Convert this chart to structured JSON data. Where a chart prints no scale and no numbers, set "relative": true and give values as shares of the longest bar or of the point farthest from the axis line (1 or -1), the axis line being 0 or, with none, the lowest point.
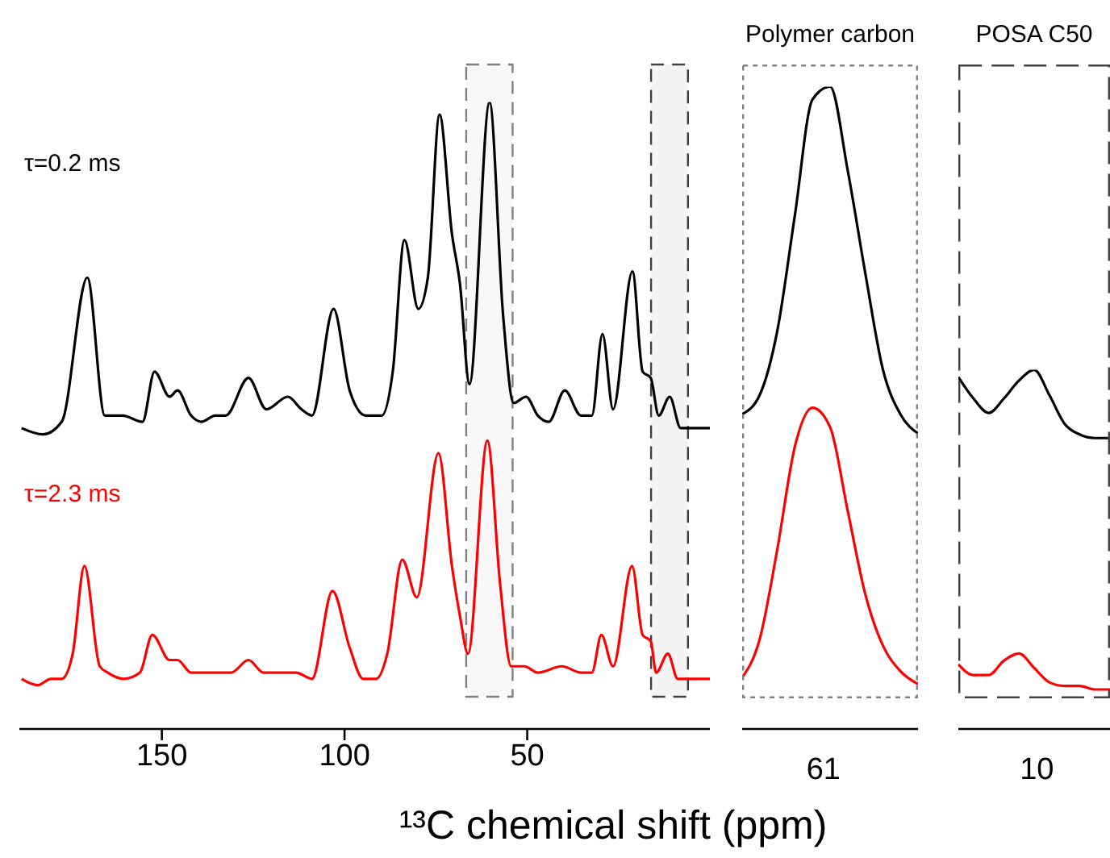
{
  "chart_data": [
    {
      "type": "line",
      "xlabel": "¹³C chemical shift (ppm)",
      "relative": true,
      "marker": "none",
      "xlim": [
        189,
        0
      ],
      "xticks": [
        150,
        100,
        50
      ],
      "bands": [
        {
          "axis": "x",
          "from": 66.7,
          "to": 54,
          "color": "#808080"
        },
        {
          "axis": "x",
          "from": 16.1,
          "to": 6,
          "color": "#404040"
        }
      ],
      "series": [
        {
          "name": "τ=0.2 ms",
          "color": "#000000",
          "x": [
            188.4,
            182.5,
            177.4,
            170.4,
            165.6,
            160.7,
            155.3,
            152.0,
            147.9,
            145.7,
            142.0,
            139.1,
            135.4,
            132.5,
            126.3,
            121.4,
            115.5,
            111.8,
            108.9,
            103.0,
            98.6,
            94.2,
            89.8,
            86.8,
            83.6,
            79.8,
            77.2,
            74.0,
            70.6,
            68.4,
            65.8,
            60.3,
            56.6,
            53.7,
            50.3,
            47.1,
            44.1,
            39.7,
            35.3,
            32.3,
            29.4,
            26.5,
            21.2,
            18.4,
            16.2,
            14.0,
            11.0,
            8.0,
            4.4,
            0.0
          ],
          "values": [
            0.48,
            0.47,
            0.49,
            0.72,
            0.5,
            0.5,
            0.49,
            0.57,
            0.53,
            0.54,
            0.5,
            0.49,
            0.5,
            0.5,
            0.56,
            0.51,
            0.53,
            0.51,
            0.5,
            0.67,
            0.54,
            0.5,
            0.5,
            0.57,
            0.78,
            0.67,
            0.72,
            0.98,
            0.79,
            0.71,
            0.55,
            1.0,
            0.66,
            0.52,
            0.53,
            0.5,
            0.49,
            0.54,
            0.5,
            0.5,
            0.63,
            0.51,
            0.73,
            0.57,
            0.56,
            0.5,
            0.53,
            0.48,
            0.48,
            0.48
          ]
        },
        {
          "name": "τ=2.3 ms",
          "color": "#ff0000",
          "x": [
            188.4,
            184.0,
            180.3,
            177.4,
            174.4,
            171.2,
            167.0,
            164.8,
            160.4,
            156.0,
            152.6,
            147.9,
            145.7,
            142.0,
            138.3,
            131.0,
            126.3,
            122.2,
            117.8,
            113.3,
            108.9,
            103.3,
            98.6,
            94.9,
            91.3,
            88.3,
            84.2,
            80.2,
            74.3,
            70.6,
            68.4,
            66.2,
            60.9,
            57.4,
            54.4,
            50.8,
            47.1,
            40.5,
            35.3,
            32.3,
            29.7,
            26.5,
            21.3,
            18.4,
            16.2,
            14.7,
            11.5,
            8.8,
            4.4,
            0.0
          ],
          "values": [
            0.08,
            0.07,
            0.08,
            0.08,
            0.12,
            0.26,
            0.1,
            0.09,
            0.08,
            0.09,
            0.15,
            0.11,
            0.11,
            0.09,
            0.09,
            0.09,
            0.11,
            0.09,
            0.09,
            0.09,
            0.08,
            0.22,
            0.13,
            0.08,
            0.08,
            0.12,
            0.27,
            0.21,
            0.44,
            0.26,
            0.18,
            0.12,
            0.46,
            0.23,
            0.1,
            0.1,
            0.09,
            0.1,
            0.09,
            0.09,
            0.15,
            0.1,
            0.26,
            0.15,
            0.14,
            0.09,
            0.12,
            0.08,
            0.08,
            0.08
          ]
        }
      ]
    },
    {
      "type": "line",
      "title": "Polymer carbon",
      "relative": true,
      "marker": "none",
      "annotations": [
        "61"
      ],
      "categories": [
        null,
        null,
        null,
        null,
        null,
        null,
        null,
        null,
        null,
        null,
        null
      ],
      "series": [
        {
          "color": "#000000",
          "values": [
            0.49,
            0.52,
            0.62,
            0.8,
            0.98,
            1.0,
            0.87,
            0.71,
            0.56,
            0.49,
            0.46
          ]
        },
        {
          "color": "#ff0000",
          "values": [
            0.08,
            0.14,
            0.28,
            0.44,
            0.5,
            0.47,
            0.34,
            0.21,
            0.13,
            0.09,
            0.07
          ]
        }
      ]
    },
    {
      "type": "line",
      "title": "POSA C50",
      "relative": true,
      "marker": "none",
      "annotations": [
        "10"
      ],
      "categories": [
        null,
        null,
        null,
        null,
        null,
        null,
        null,
        null,
        null,
        null,
        null
      ],
      "series": [
        {
          "color": "#000000",
          "values": [
            0.98,
            0.92,
            0.88,
            0.92,
            0.97,
            1.0,
            0.93,
            0.85,
            0.82,
            0.81,
            0.81
          ]
        },
        {
          "color": "#ff0000",
          "values": [
            0.18,
            0.15,
            0.15,
            0.19,
            0.21,
            0.17,
            0.13,
            0.12,
            0.12,
            0.11,
            0.11
          ]
        }
      ]
    }
  ]
}
